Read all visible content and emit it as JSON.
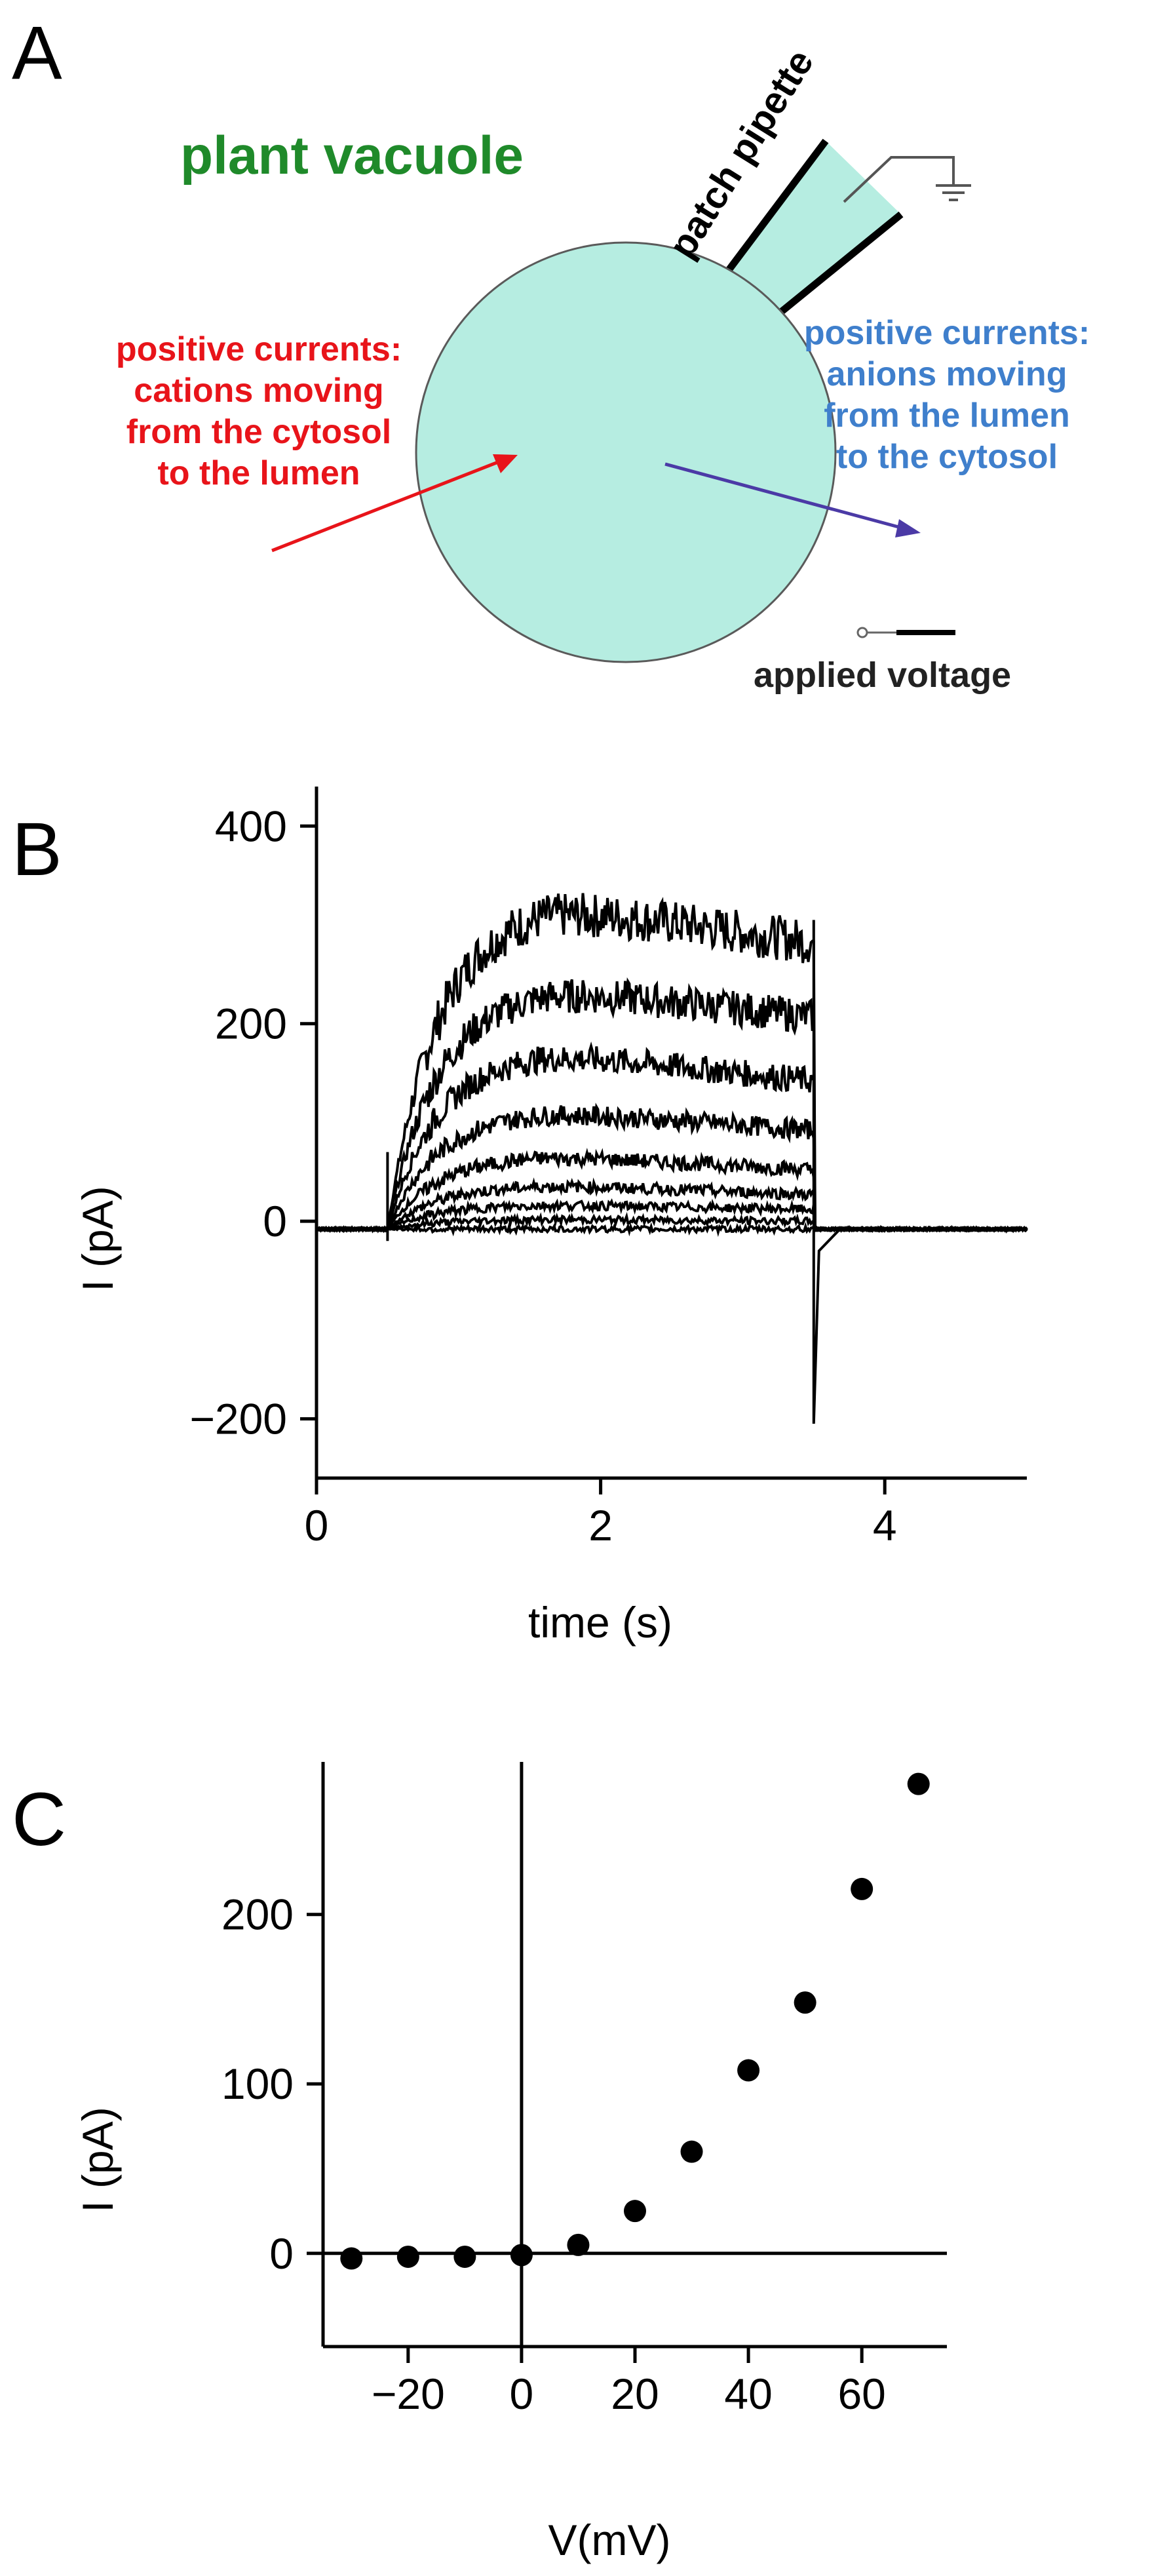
{
  "colors": {
    "vacuole": "#b6ede1",
    "red_text": "#e8141a",
    "blue_text": "#3f7fcc",
    "green_text": "#1f8a2a",
    "arrow_purple": "#4b3aa6"
  },
  "panelA": {
    "letter": "A",
    "title": "plant vacuole",
    "pipette_label": "patch pipette",
    "left_text": [
      "positive currents:",
      "cations moving",
      "from the cytosol",
      "to the lumen"
    ],
    "right_text": [
      "positive currents:",
      "anions moving",
      "from the lumen",
      "to the cytosol"
    ],
    "voltage_label": "applied voltage"
  },
  "panelB": {
    "letter": "B",
    "ylabel": "I (pA)",
    "xlabel": "time (s)"
  },
  "panelC": {
    "letter": "C",
    "ylabel": "I (pA)",
    "xlabel": "V(mV)"
  },
  "chart_data": [
    {
      "type": "line",
      "panel": "B",
      "xlabel": "time (s)",
      "ylabel": "I (pA)",
      "xlim": [
        0,
        5
      ],
      "ylim": [
        -260,
        440
      ],
      "xticks": [
        0,
        2,
        4
      ],
      "yticks": [
        -200,
        0,
        200,
        400
      ],
      "pulse_on_s": 0.5,
      "pulse_off_s": 3.5,
      "series": [
        {
          "peak": 330,
          "end": 290
        },
        {
          "peak": 245,
          "end": 215
        },
        {
          "peak": 180,
          "end": 150
        },
        {
          "peak": 120,
          "end": 100
        },
        {
          "peak": 75,
          "end": 60
        },
        {
          "peak": 45,
          "end": 35
        },
        {
          "peak": 25,
          "end": 20
        },
        {
          "peak": 10,
          "end": 8
        },
        {
          "peak": 0,
          "end": 0
        }
      ],
      "tail_min": -205
    },
    {
      "type": "scatter",
      "panel": "C",
      "xlabel": "V(mV)",
      "ylabel": "I (pA)",
      "xlim": [
        -35,
        75
      ],
      "ylim": [
        -55,
        290
      ],
      "xticks": [
        -20,
        0,
        20,
        40,
        60
      ],
      "yticks": [
        0,
        100,
        200
      ],
      "x": [
        -30,
        -20,
        -10,
        0,
        10,
        20,
        30,
        40,
        50,
        60,
        70
      ],
      "y": [
        -3,
        -2,
        -2,
        -1,
        5,
        25,
        60,
        108,
        148,
        215,
        277
      ]
    }
  ]
}
